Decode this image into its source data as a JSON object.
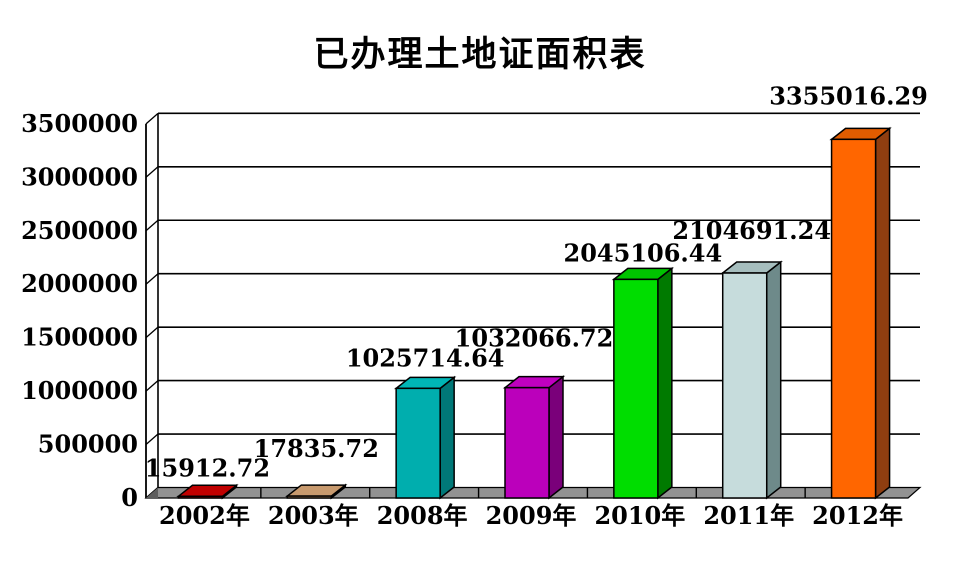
{
  "page": {
    "background": "#FFFFFF"
  },
  "chart_data": {
    "type": "bar",
    "style": "3d-column",
    "title": "已办理土地证面积表",
    "categories": [
      "2002年",
      "2003年",
      "2008年",
      "2009年",
      "2010年",
      "2011年",
      "2012年"
    ],
    "values": [
      15912.72,
      17835.72,
      1025714.64,
      1032066.72,
      2045106.44,
      2104691.24,
      3355016.29
    ],
    "value_labels": [
      "15912.72",
      "17835.72",
      "1025714.64",
      "1032066.72",
      "2045106.44",
      "2104691.24",
      "3355016.29"
    ],
    "xlabel": "",
    "ylabel": "",
    "y_ticks": [
      0,
      500000,
      1000000,
      1500000,
      2000000,
      2500000,
      3000000,
      3500000
    ],
    "y_tick_labels": [
      "0",
      "500000",
      "1000000",
      "1500000",
      "2000000",
      "2500000",
      "3000000",
      "3500000"
    ],
    "ylim": [
      0,
      3500000
    ],
    "grid": true,
    "legend": "none",
    "bar_colors": [
      {
        "front": "#C00000",
        "top": "#C00000",
        "side": "#7A0000"
      },
      {
        "front": "#CC9966",
        "top": "#C89A6E",
        "side": "#8A6240"
      },
      {
        "front": "#00AEAE",
        "top": "#00B6B6",
        "side": "#007878"
      },
      {
        "front": "#BB00BB",
        "top": "#C000C0",
        "side": "#7A007A"
      },
      {
        "front": "#00DD00",
        "top": "#00C400",
        "side": "#007A00"
      },
      {
        "front": "#C6DCDC",
        "top": "#A6BEBE",
        "side": "#6E8A8A"
      },
      {
        "front": "#FF6600",
        "top": "#E05C00",
        "side": "#8F3E10"
      }
    ],
    "floor_color": "#929292",
    "floor_cap_color": "#5E5E5E",
    "axis_color": "#000000",
    "label_offsets": [
      9,
      28,
      11,
      30,
      7,
      23,
      24
    ]
  }
}
